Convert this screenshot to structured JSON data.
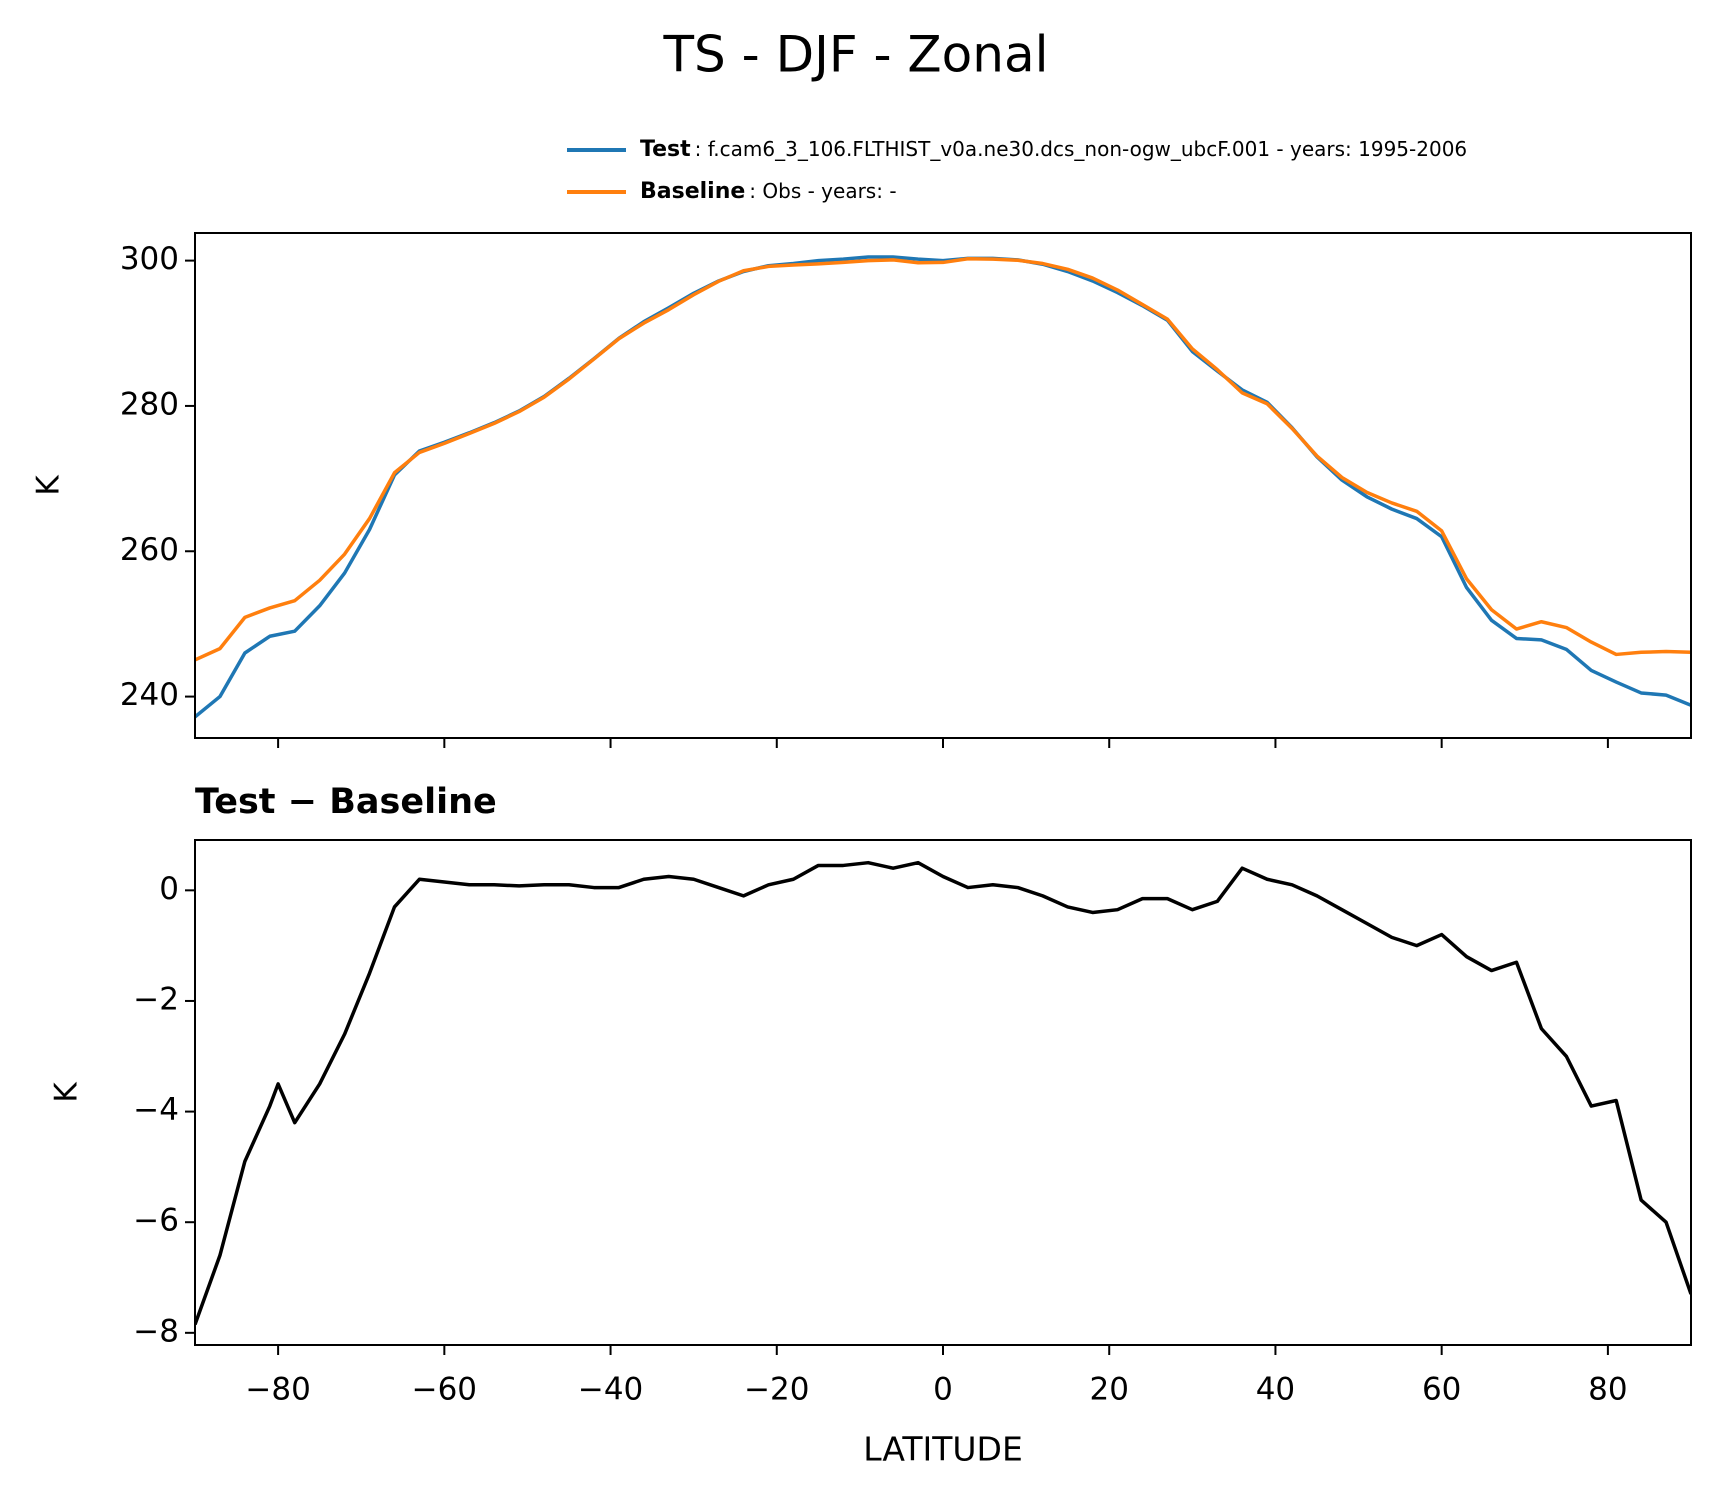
{
  "chart_data": [
    {
      "type": "line",
      "title": "TS - DJF - Zonal",
      "ylabel": "K",
      "xlim": [
        -90,
        90
      ],
      "ylim": [
        234.3,
        303.8
      ],
      "xticks": [
        -80,
        -60,
        -40,
        -20,
        0,
        20,
        40,
        60,
        80
      ],
      "yticks": [
        240,
        260,
        280,
        300
      ],
      "x": [
        -90,
        -87,
        -84,
        -81,
        -78,
        -75,
        -72,
        -69,
        -66,
        -63,
        -60,
        -57,
        -54,
        -51,
        -48,
        -45,
        -42,
        -39,
        -36,
        -33,
        -30,
        -27,
        -24,
        -21,
        -18,
        -15,
        -12,
        -9,
        -6,
        -3,
        0,
        3,
        6,
        9,
        12,
        15,
        18,
        21,
        24,
        27,
        30,
        33,
        36,
        39,
        42,
        45,
        48,
        51,
        54,
        57,
        60,
        63,
        66,
        69,
        72,
        75,
        78,
        81,
        84,
        87,
        90
      ],
      "series": [
        {
          "name": "Test",
          "description": ": f.cam6_3_106.FLTHIST_v0a.ne30.dcs_non-ogw_ubcF.001 - years: 1995-2006",
          "color": "#1f77b4",
          "values": [
            237.2,
            240,
            246,
            248.3,
            249,
            252.5,
            257,
            263,
            270.5,
            273.8,
            275,
            276.3,
            277.7,
            279.3,
            281.3,
            283.8,
            286.5,
            289.3,
            291.6,
            293.5,
            295.5,
            297.2,
            298.5,
            299.3,
            299.6,
            300,
            300.2,
            300.5,
            300.5,
            300.2,
            300,
            300.3,
            300.3,
            300.1,
            299.5,
            298.5,
            297.2,
            295.6,
            293.8,
            291.8,
            287.5,
            284.8,
            282.2,
            280.5,
            277,
            273,
            269.8,
            267.5,
            265.8,
            264.5,
            262,
            255,
            250.5,
            248,
            247.8,
            246.5,
            243.6,
            242,
            240.5,
            240.2,
            238.8
          ]
        },
        {
          "name": "Baseline",
          "description": ": Obs - years: -",
          "color": "#ff7f0e",
          "values": [
            245.05,
            246.6,
            250.9,
            252.2,
            253.2,
            256,
            259.6,
            264.5,
            270.8,
            273.6,
            274.85,
            276.2,
            277.6,
            279.22,
            281.2,
            283.7,
            286.45,
            289.25,
            291.4,
            293.25,
            295.3,
            297.15,
            298.6,
            299.2,
            299.4,
            299.55,
            299.75,
            300,
            300.1,
            299.7,
            299.75,
            300.25,
            300.2,
            300.05,
            299.6,
            298.8,
            297.6,
            295.95,
            293.95,
            291.95,
            287.85,
            285,
            281.8,
            280.3,
            276.9,
            273.1,
            270.15,
            268.1,
            266.65,
            265.5,
            262.8,
            256.2,
            251.95,
            249.3,
            250.3,
            249.5,
            247.5,
            245.8,
            246.1,
            246.2,
            246.1
          ]
        }
      ]
    },
    {
      "type": "line",
      "subtitle": "Test − Baseline",
      "ylabel": "K",
      "xlabel": "LATITUDE",
      "xlim": [
        -90,
        90
      ],
      "ylim": [
        -8.22,
        0.91
      ],
      "xticks": [
        {
          "value": -80,
          "label": "−80"
        },
        {
          "value": -60,
          "label": "−60"
        },
        {
          "value": -40,
          "label": "−40"
        },
        {
          "value": -20,
          "label": "−20"
        },
        0,
        20,
        40,
        60,
        80
      ],
      "yticks": [
        {
          "value": -8,
          "label": "−8"
        },
        {
          "value": -6,
          "label": "−6"
        },
        {
          "value": -4,
          "label": "−4"
        },
        {
          "value": -2,
          "label": "−2"
        },
        0
      ],
      "x": [
        -90,
        -87,
        -84,
        -81,
        -80,
        -78,
        -75,
        -72,
        -69,
        -66,
        -63,
        -60,
        -57,
        -54,
        -51,
        -48,
        -45,
        -42,
        -39,
        -36,
        -33,
        -30,
        -27,
        -24,
        -21,
        -18,
        -15,
        -12,
        -9,
        -6,
        -3,
        0,
        3,
        6,
        9,
        12,
        15,
        18,
        21,
        24,
        27,
        30,
        33,
        36,
        39,
        42,
        45,
        48,
        51,
        54,
        57,
        60,
        63,
        66,
        69,
        72,
        75,
        78,
        81,
        84,
        87,
        90
      ],
      "series": [
        {
          "color": "#000000",
          "values": [
            -7.85,
            -6.6,
            -4.9,
            -3.9,
            -3.5,
            -4.2,
            -3.5,
            -2.6,
            -1.5,
            -0.3,
            0.2,
            0.15,
            0.1,
            0.1,
            0.08,
            0.1,
            0.1,
            0.05,
            0.05,
            0.2,
            0.25,
            0.2,
            0.05,
            -0.1,
            0.1,
            0.2,
            0.45,
            0.45,
            0.5,
            0.4,
            0.5,
            0.25,
            0.05,
            0.1,
            0.05,
            -0.1,
            -0.3,
            -0.4,
            -0.35,
            -0.15,
            -0.15,
            -0.35,
            -0.2,
            0.4,
            0.2,
            0.1,
            -0.1,
            -0.35,
            -0.6,
            -0.85,
            -1.0,
            -0.8,
            -1.2,
            -1.45,
            -1.3,
            -2.5,
            -3.0,
            -3.9,
            -3.8,
            -5.6,
            -6.0,
            -7.3
          ]
        }
      ]
    }
  ]
}
